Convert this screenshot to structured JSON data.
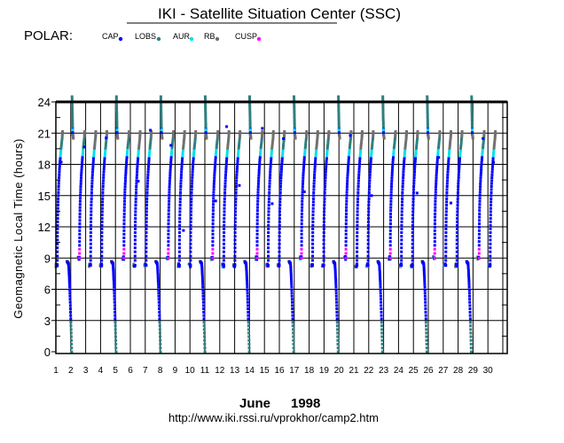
{
  "header": {
    "title": "IKI - Satellite Situation Center (SSC)",
    "satellite": "POLAR:"
  },
  "footer": {
    "month": "June",
    "year": "1998",
    "url": "http://www.iki.rssi.ru/vprokhor/camp2.htm"
  },
  "chart_data": {
    "type": "scatter",
    "title": "IKI - Satellite Situation Center (SSC)",
    "xlabel": "June 1998",
    "ylabel": "Geomagnetic Local Time (hours)",
    "xlim": [
      1,
      31
    ],
    "ylim": [
      0,
      24
    ],
    "x_ticks": [
      "1",
      "2",
      "3",
      "4",
      "5",
      "6",
      "7",
      "8",
      "9",
      "10",
      "11",
      "12",
      "13",
      "14",
      "15",
      "16",
      "17",
      "18",
      "19",
      "20",
      "21",
      "22",
      "23",
      "24",
      "25",
      "26",
      "27",
      "28",
      "29",
      "30"
    ],
    "y_ticks": [
      "0",
      "3",
      "6",
      "9",
      "12",
      "15",
      "18",
      "21",
      "24"
    ],
    "grid": true,
    "legend": [
      {
        "name": "CAP",
        "color": "#0000ff"
      },
      {
        "name": "LOBS",
        "color": "#2f7f80"
      },
      {
        "name": "AUR",
        "color": "#00e0e8"
      },
      {
        "name": "RB",
        "color": "#707070"
      },
      {
        "name": "CUSP",
        "color": "#ff00ff"
      }
    ],
    "legend_position": "top",
    "orbit_period_days": 0.745,
    "first_orbit_day": 1.0,
    "orbit_count": 40,
    "dip_every": 4,
    "dip_offset": 1,
    "orbit_low_hour": 8.3,
    "orbit_high_hour": 20.5,
    "dip_top_hour": 24.5
  }
}
